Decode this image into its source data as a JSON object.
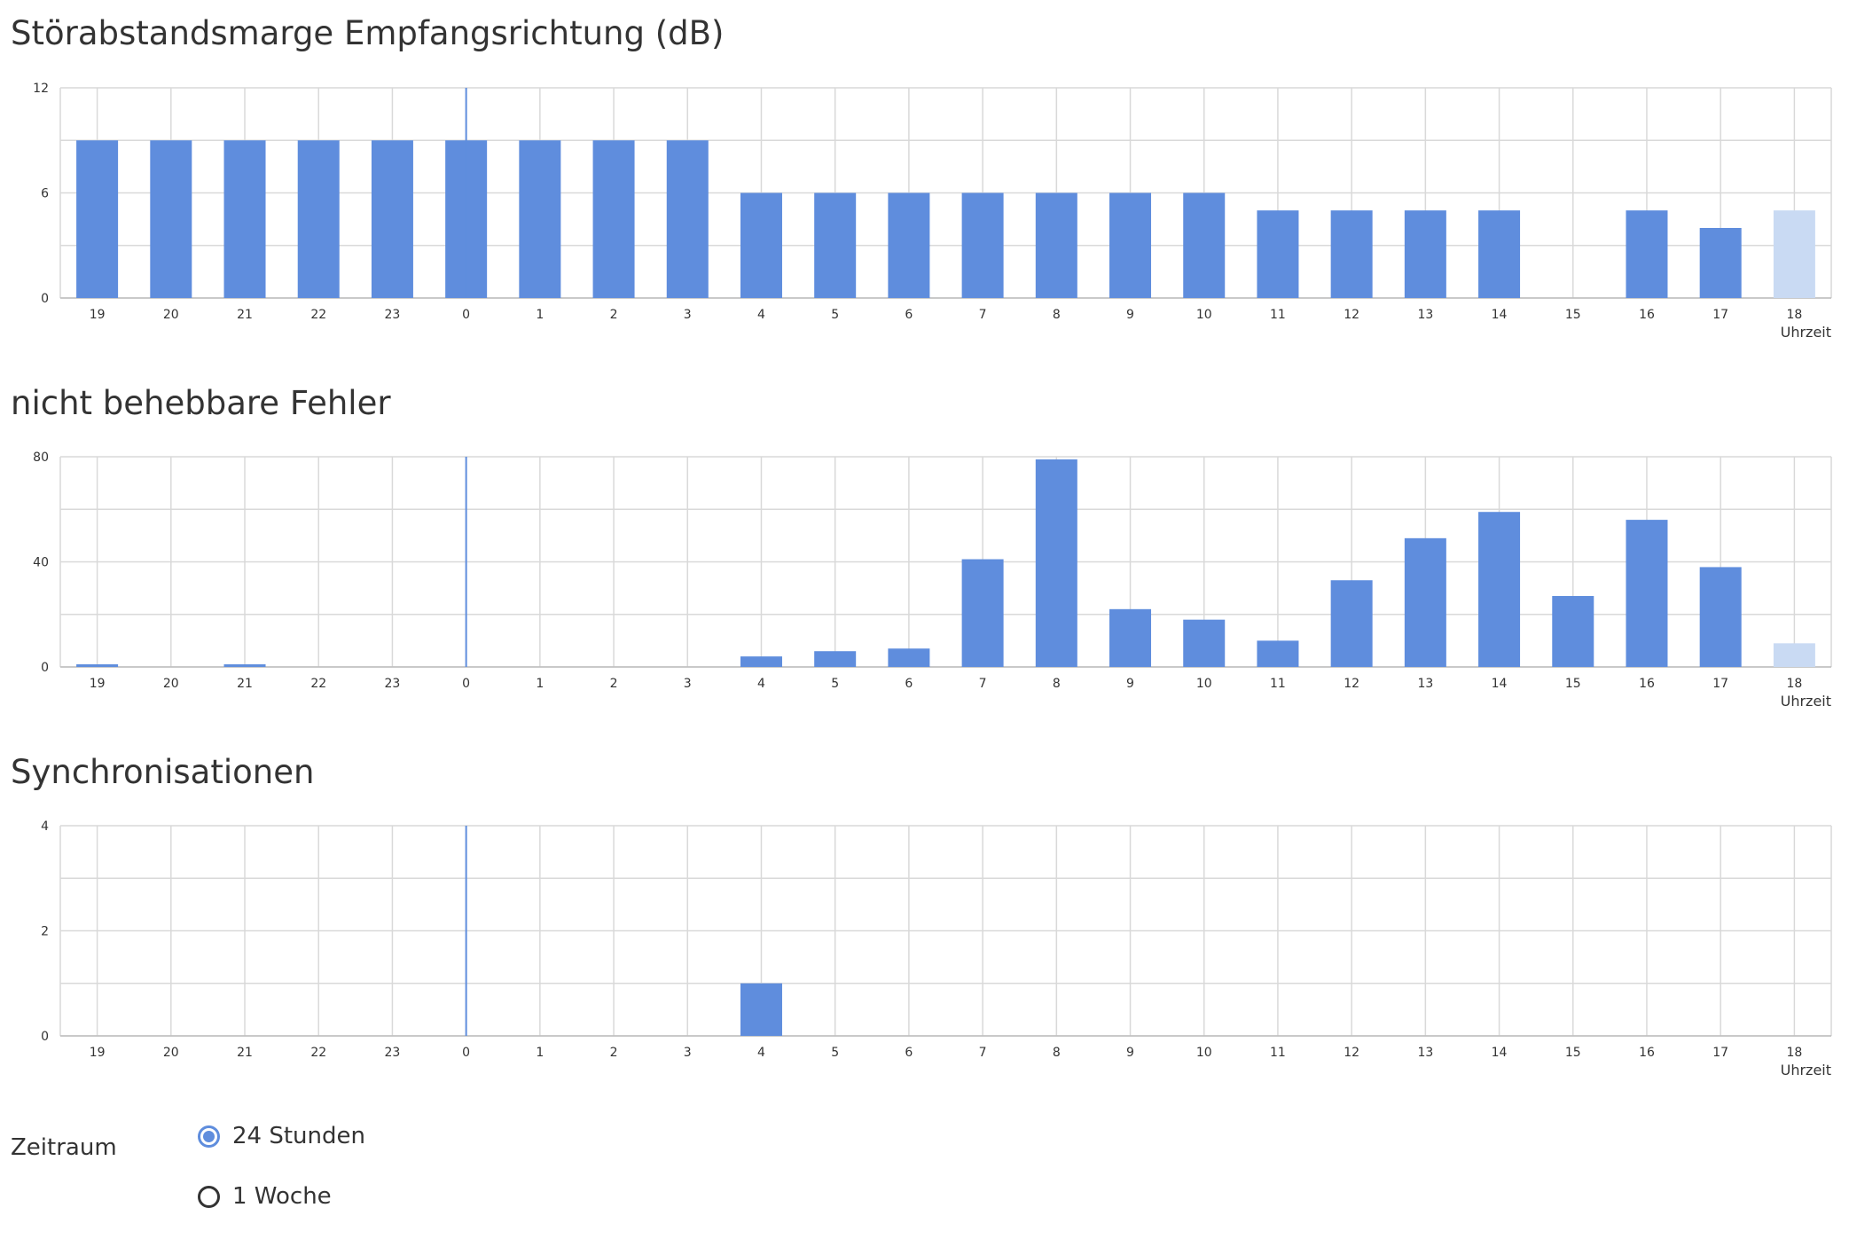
{
  "colors": {
    "bar": "#5f8ddd",
    "bar_current": "#c9daf3",
    "grid": "#d9d9d9",
    "marker_line": "#5f8ddd",
    "text": "#333333"
  },
  "chart_data": [
    {
      "type": "bar",
      "title": "Störabstandsmarge Empfangsrichtung (dB)",
      "xlabel": "Uhrzeit",
      "ylabel": "",
      "categories": [
        "19",
        "20",
        "21",
        "22",
        "23",
        "0",
        "1",
        "2",
        "3",
        "4",
        "5",
        "6",
        "7",
        "8",
        "9",
        "10",
        "11",
        "12",
        "13",
        "14",
        "15",
        "16",
        "17",
        "18"
      ],
      "values": [
        9,
        9,
        9,
        9,
        9,
        9,
        9,
        9,
        9,
        6,
        6,
        6,
        6,
        6,
        6,
        6,
        5,
        5,
        5,
        5,
        0,
        5,
        4,
        5
      ],
      "yticks": [
        0,
        6,
        12
      ],
      "ylim": [
        0,
        12
      ],
      "current_index": 23,
      "day_marker_category": "0",
      "grid": true
    },
    {
      "type": "bar",
      "title": "nicht behebbare Fehler",
      "xlabel": "Uhrzeit",
      "ylabel": "",
      "categories": [
        "19",
        "20",
        "21",
        "22",
        "23",
        "0",
        "1",
        "2",
        "3",
        "4",
        "5",
        "6",
        "7",
        "8",
        "9",
        "10",
        "11",
        "12",
        "13",
        "14",
        "15",
        "16",
        "17",
        "18"
      ],
      "values": [
        1,
        0,
        1,
        0,
        0,
        0,
        0,
        0,
        0,
        4,
        6,
        7,
        41,
        79,
        22,
        18,
        10,
        33,
        49,
        59,
        27,
        56,
        38,
        9
      ],
      "yticks": [
        0,
        40,
        80
      ],
      "ylim": [
        0,
        80
      ],
      "current_index": 23,
      "day_marker_category": "0",
      "grid": true
    },
    {
      "type": "bar",
      "title": "Synchronisationen",
      "xlabel": "Uhrzeit",
      "ylabel": "",
      "categories": [
        "19",
        "20",
        "21",
        "22",
        "23",
        "0",
        "1",
        "2",
        "3",
        "4",
        "5",
        "6",
        "7",
        "8",
        "9",
        "10",
        "11",
        "12",
        "13",
        "14",
        "15",
        "16",
        "17",
        "18"
      ],
      "values": [
        0,
        0,
        0,
        0,
        0,
        0,
        0,
        0,
        0,
        1,
        0,
        0,
        0,
        0,
        0,
        0,
        0,
        0,
        0,
        0,
        0,
        0,
        0,
        0
      ],
      "yticks": [
        0,
        2,
        4
      ],
      "ylim": [
        0,
        4
      ],
      "current_index": 23,
      "day_marker_category": "0",
      "grid": true
    }
  ],
  "controls": {
    "label": "Zeitraum",
    "options": [
      {
        "label": "24 Stunden",
        "checked": true
      },
      {
        "label": "1 Woche",
        "checked": false
      }
    ]
  }
}
